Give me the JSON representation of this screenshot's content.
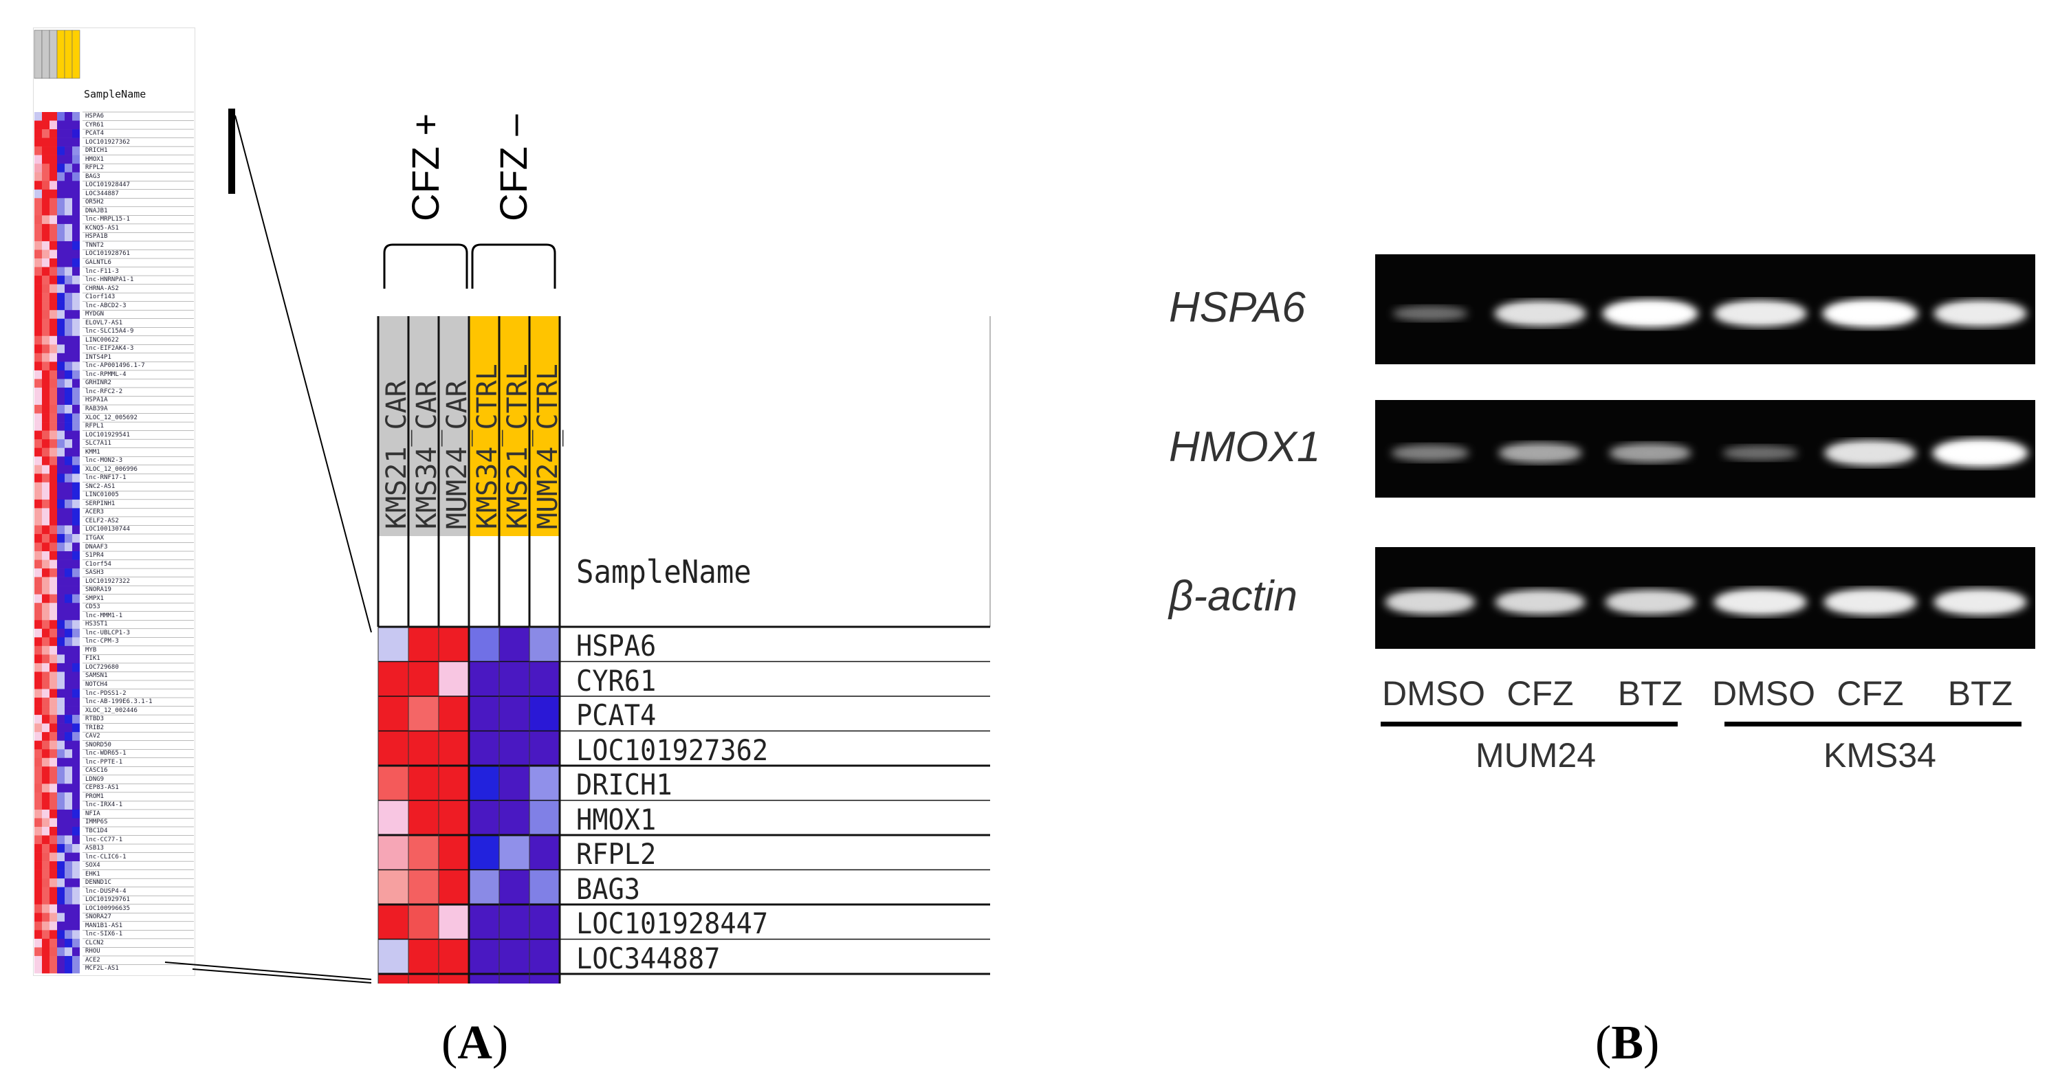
{
  "panel_a": {
    "letter": "A",
    "group_labels": [
      "CFZ +",
      "CFZ –"
    ],
    "sample_name_header": "SampleName",
    "columns": [
      "KMS21_CAR",
      "KMS34_CAR",
      "MUM24_CAR",
      "KMS34_CTRL",
      "KMS21_CTRL",
      "MUM24_CTRL"
    ],
    "genes": [
      "HSPA6",
      "CYR61",
      "PCAT4",
      "LOC101927362",
      "DRICH1",
      "HMOX1",
      "RFPL2",
      "BAG3",
      "LOC101928447",
      "LOC344887"
    ],
    "cell_colors": [
      [
        "#c8c8f2",
        "#ee1c24",
        "#ee1c24",
        "#7070e6",
        "#4a18c2",
        "#8a8ae6"
      ],
      [
        "#ee1c24",
        "#ee1c24",
        "#f8c6e2",
        "#4a18c2",
        "#4a18c2",
        "#4a18c2"
      ],
      [
        "#ee1c24",
        "#f46666",
        "#ee1c24",
        "#4a18c2",
        "#4a18c2",
        "#2a18d6"
      ],
      [
        "#ee1c24",
        "#ee1c24",
        "#ee1c24",
        "#4a18c2",
        "#4a18c2",
        "#4a18c2"
      ],
      [
        "#f45a5a",
        "#ee1c24",
        "#ee1c24",
        "#2222dd",
        "#4a18c2",
        "#9090ea"
      ],
      [
        "#f8c6e2",
        "#ee1c24",
        "#ee1c24",
        "#4a18c2",
        "#4a18c2",
        "#8080e6"
      ],
      [
        "#f6a6b6",
        "#f46060",
        "#ee1c24",
        "#2222dd",
        "#9090ea",
        "#4a18c2"
      ],
      [
        "#f6a0a0",
        "#f46060",
        "#ee1c24",
        "#8a8ae6",
        "#4a18c2",
        "#8080e6"
      ],
      [
        "#ee1c24",
        "#f25050",
        "#f8c6e2",
        "#4a18c2",
        "#4a18c2",
        "#4a18c2"
      ],
      [
        "#c8c8f2",
        "#ee1c24",
        "#ee1c24",
        "#4a18c2",
        "#4a18c2",
        "#4a18c2"
      ]
    ],
    "thumbnail_header": "SampleName",
    "thumbnail_genes": [
      "HSPA6",
      "CYR61",
      "PCAT4",
      "LOC101927362",
      "DRICH1",
      "HMOX1",
      "RFPL2",
      "BAG3",
      "LOC101928447",
      "LOC344887",
      "OR5H2",
      "DNAJB1",
      "lnc-MRPL15-1",
      "KCNQ5-AS1",
      "HSPA1B",
      "TNNT2",
      "LOC101928761",
      "GALNTL6",
      "lnc-F11-3",
      "lnc-HNRNPA1-1",
      "CHRNA-AS2",
      "C1orf143",
      "lnc-ABCD2-3",
      "MYDGN",
      "ELOVL7-AS1",
      "lnc-SLC15A4-9",
      "LINC00622",
      "lnc-EIF2AK4-3",
      "INTS4P1",
      "lnc-AP001496.1-7",
      "lnc-RPMML-4",
      "GRHINR2",
      "lnc-RFC2-2",
      "HSPA1A",
      "RAB39A",
      "XLOC_12_005692",
      "RFPL1",
      "LOC101929541",
      "SLC7A11",
      "KMM1",
      "lnc-MON2-3",
      "XLOC_12_006996",
      "lnc-RNF17-1",
      "SNC2-AS1",
      "LINC01005",
      "SERPINH1",
      "ACER3",
      "CELF2-AS2",
      "LOC100130744",
      "ITGAX",
      "DNAAF3",
      "S1PR4",
      "C1orf54",
      "SASH3",
      "LOC101927322",
      "SNORA19",
      "SMPX1",
      "CD53",
      "lnc-MMM1-1",
      "HS3ST1",
      "lnc-UBLCP1-3",
      "lnc-CPM-3",
      "MYB",
      "FIK1",
      "LOC729680",
      "SAMSN1",
      "NOTCH4",
      "lnc-PDSS1-2",
      "lnc-AB-199E6.3.1-1",
      "XLOC_12_002446",
      "RTBD3",
      "TRIB2",
      "CAV2",
      "SNORD50",
      "lnc-WDR65-1",
      "lnc-PPTE-1",
      "CASC16",
      "LDNG9",
      "CEP83-AS1",
      "PROM1",
      "lnc-IRX4-1",
      "NFIA",
      "IMMP6S",
      "TBC1D4",
      "lnc-CC77-1",
      "ASB13",
      "lnc-CLIC6-1",
      "SOX4",
      "EHK1",
      "DENND1C",
      "lnc-DUSP4-4",
      "LOC101929761",
      "LOC100996635",
      "SNORA27",
      "MAN1B1-AS1",
      "lnc-SIX6-1",
      "CLCN2",
      "RHOU",
      "ACE2",
      "MCF2L-AS1"
    ],
    "thumbnail_column_colors": [
      "#c8c8c8",
      "#c8c8c8",
      "#c8c8c8",
      "#ffd000",
      "#ffd000",
      "#ffd000"
    ]
  },
  "panel_b": {
    "letter": "B",
    "gel_rows": [
      {
        "label": "HSPA6",
        "intensities": [
          0.25,
          0.85,
          1.0,
          0.9,
          1.0,
          0.9
        ]
      },
      {
        "label": "HMOX1",
        "intensities": [
          0.35,
          0.55,
          0.5,
          0.25,
          0.85,
          1.0
        ]
      },
      {
        "label": "β-actin",
        "intensities": [
          0.8,
          0.8,
          0.8,
          0.9,
          0.9,
          0.9
        ]
      }
    ],
    "lanes": [
      "DMSO",
      "CFZ",
      "BTZ",
      "DMSO",
      "CFZ",
      "BTZ"
    ],
    "groups": [
      "MUM24",
      "KMS34"
    ]
  }
}
